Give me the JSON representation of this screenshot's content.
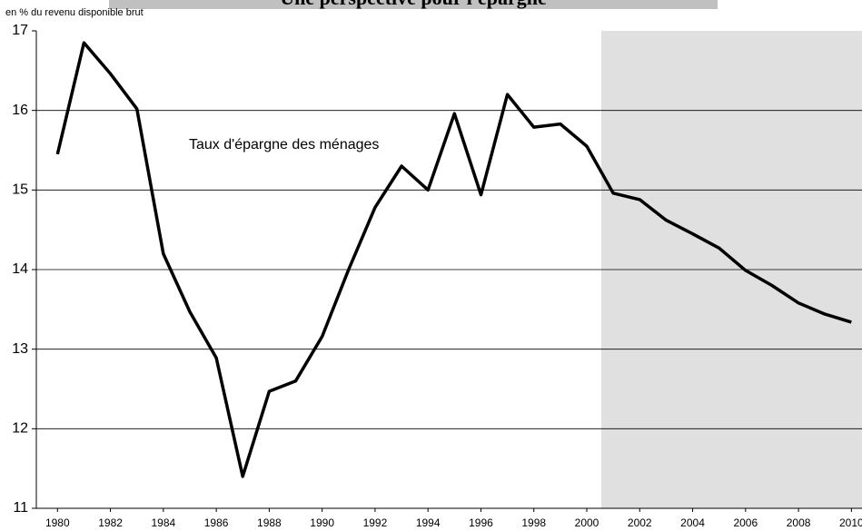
{
  "chart_data": {
    "type": "line",
    "title": "Une perspective pour l'épargne",
    "y_label": "en % du revenu disponible brut",
    "annotation": "Taux d'épargne des ménages",
    "x": [
      1980,
      1981,
      1982,
      1983,
      1984,
      1985,
      1986,
      1987,
      1988,
      1989,
      1990,
      1991,
      1992,
      1993,
      1994,
      1995,
      1996,
      1997,
      1998,
      1999,
      2000,
      2001,
      2002,
      2003,
      2004,
      2005,
      2006,
      2007,
      2008,
      2009,
      2010
    ],
    "values": [
      15.45,
      16.85,
      16.46,
      16.02,
      14.2,
      13.47,
      12.89,
      11.4,
      12.47,
      12.6,
      13.16,
      14.0,
      14.78,
      15.3,
      15.0,
      15.96,
      14.94,
      16.2,
      15.79,
      15.83,
      15.55,
      14.96,
      14.88,
      14.62,
      14.45,
      14.27,
      13.99,
      13.8,
      13.58,
      13.44,
      13.34
    ],
    "color": "#000000",
    "xlim": [
      1979.2,
      2010.4
    ],
    "xticks": [
      1980,
      1982,
      1984,
      1986,
      1988,
      1990,
      1992,
      1994,
      1996,
      1998,
      2000,
      2002,
      2004,
      2006,
      2008,
      2010
    ],
    "ylim": [
      11,
      17
    ],
    "yticks": [
      11,
      12,
      13,
      14,
      15,
      16,
      17
    ],
    "grid": true,
    "shade_from": 2000.55,
    "shade_color": "#e0e0e0"
  }
}
